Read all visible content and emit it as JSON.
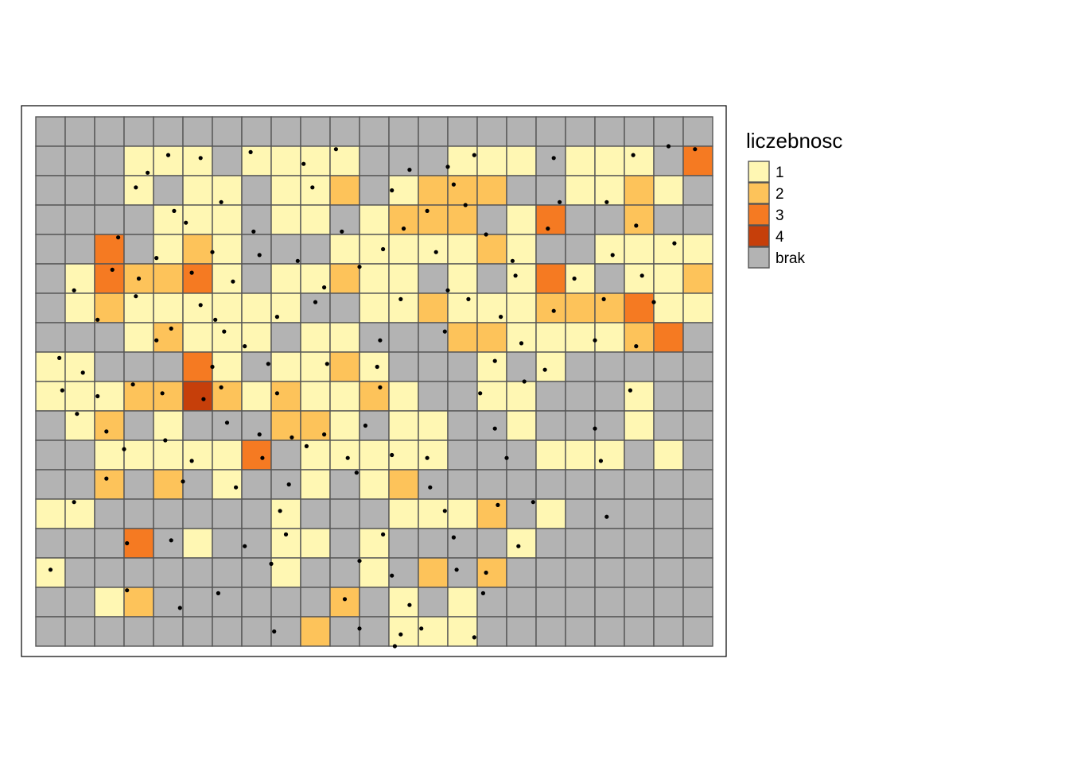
{
  "chart_data": {
    "type": "heatmap",
    "title": "",
    "ncols": 23,
    "nrows": 18,
    "legend": {
      "title": "liczebnosc",
      "placement": "right",
      "entries": [
        {
          "key": "1",
          "label": "1",
          "color": "#FFF7B3"
        },
        {
          "key": "2",
          "label": "2",
          "color": "#FDC35A"
        },
        {
          "key": "3",
          "label": "3",
          "color": "#F57A22"
        },
        {
          "key": "4",
          "label": "4",
          "color": "#C63F0A"
        },
        {
          "key": "0",
          "label": "brak",
          "color": "#B3B3B3"
        }
      ]
    },
    "grid": [
      "00000000000000000000000",
      "00011101111000111011103",
      "00010110112012220011210",
      "00001110110122201300200",
      "00301210001111121001111",
      "01322310112110101310112",
      "01211111100112111222311",
      "00012111011000221111230",
      "11000310112100010100000",
      "11122421211210011000100",
      "01201000221011001000100",
      "00111113011111000111010",
      "00202010010120000000000",
      "11000000100011120100000",
      "00030100110100001000000",
      "10000000100102020000000",
      "00120000002010100000000",
      "00000000020011100000000"
    ],
    "points": [
      [
        4.5,
        1.3
      ],
      [
        5.6,
        1.4
      ],
      [
        3.8,
        1.9
      ],
      [
        7.3,
        1.2
      ],
      [
        9.1,
        1.6
      ],
      [
        10.2,
        1.1
      ],
      [
        12.7,
        1.8
      ],
      [
        14.0,
        1.7
      ],
      [
        14.9,
        1.3
      ],
      [
        17.6,
        1.4
      ],
      [
        20.3,
        1.3
      ],
      [
        21.5,
        1.0
      ],
      [
        22.4,
        1.1
      ],
      [
        3.4,
        2.4
      ],
      [
        6.3,
        2.9
      ],
      [
        9.4,
        2.4
      ],
      [
        12.1,
        2.5
      ],
      [
        14.2,
        2.3
      ],
      [
        17.8,
        2.9
      ],
      [
        19.4,
        2.9
      ],
      [
        4.7,
        3.2
      ],
      [
        5.1,
        3.6
      ],
      [
        7.4,
        3.9
      ],
      [
        10.4,
        3.9
      ],
      [
        12.5,
        3.8
      ],
      [
        13.3,
        3.2
      ],
      [
        14.6,
        3.0
      ],
      [
        17.4,
        3.8
      ],
      [
        20.4,
        3.7
      ],
      [
        2.8,
        4.1
      ],
      [
        4.1,
        4.8
      ],
      [
        6.0,
        4.6
      ],
      [
        7.6,
        4.7
      ],
      [
        8.9,
        4.9
      ],
      [
        11.8,
        4.5
      ],
      [
        13.6,
        4.6
      ],
      [
        15.3,
        4.0
      ],
      [
        16.2,
        4.9
      ],
      [
        19.6,
        4.7
      ],
      [
        21.7,
        4.3
      ],
      [
        1.3,
        5.9
      ],
      [
        2.6,
        5.2
      ],
      [
        3.5,
        5.5
      ],
      [
        5.3,
        5.3
      ],
      [
        6.7,
        5.6
      ],
      [
        9.8,
        5.8
      ],
      [
        11.0,
        5.1
      ],
      [
        14.0,
        5.9
      ],
      [
        16.3,
        5.4
      ],
      [
        18.3,
        5.5
      ],
      [
        20.6,
        5.4
      ],
      [
        2.1,
        6.9
      ],
      [
        3.4,
        6.1
      ],
      [
        5.6,
        6.4
      ],
      [
        6.1,
        6.9
      ],
      [
        8.2,
        6.8
      ],
      [
        9.5,
        6.3
      ],
      [
        12.4,
        6.2
      ],
      [
        14.7,
        6.2
      ],
      [
        15.8,
        6.8
      ],
      [
        17.6,
        6.6
      ],
      [
        19.3,
        6.2
      ],
      [
        21.0,
        6.3
      ],
      [
        4.6,
        7.2
      ],
      [
        4.1,
        7.6
      ],
      [
        6.4,
        7.3
      ],
      [
        7.1,
        7.8
      ],
      [
        11.7,
        7.6
      ],
      [
        13.9,
        7.3
      ],
      [
        16.5,
        7.7
      ],
      [
        19.0,
        7.6
      ],
      [
        20.4,
        7.8
      ],
      [
        0.8,
        8.2
      ],
      [
        1.6,
        8.7
      ],
      [
        6.0,
        8.5
      ],
      [
        7.9,
        8.4
      ],
      [
        9.9,
        8.4
      ],
      [
        11.6,
        8.5
      ],
      [
        15.6,
        8.3
      ],
      [
        17.3,
        8.6
      ],
      [
        0.9,
        9.3
      ],
      [
        2.1,
        9.5
      ],
      [
        3.3,
        9.1
      ],
      [
        4.3,
        9.4
      ],
      [
        5.7,
        9.6
      ],
      [
        6.3,
        9.2
      ],
      [
        8.2,
        9.4
      ],
      [
        11.7,
        9.2
      ],
      [
        15.1,
        9.4
      ],
      [
        16.6,
        9.0
      ],
      [
        20.2,
        9.3
      ],
      [
        1.4,
        10.1
      ],
      [
        2.4,
        10.7
      ],
      [
        6.5,
        10.4
      ],
      [
        7.6,
        10.8
      ],
      [
        8.7,
        10.9
      ],
      [
        9.8,
        10.8
      ],
      [
        11.2,
        10.5
      ],
      [
        15.6,
        10.6
      ],
      [
        19.0,
        10.6
      ],
      [
        3.0,
        11.3
      ],
      [
        4.4,
        11.0
      ],
      [
        5.3,
        11.7
      ],
      [
        7.7,
        11.6
      ],
      [
        9.2,
        11.2
      ],
      [
        10.6,
        11.6
      ],
      [
        12.1,
        11.5
      ],
      [
        13.3,
        11.6
      ],
      [
        16.0,
        11.6
      ],
      [
        19.2,
        11.7
      ],
      [
        2.4,
        12.3
      ],
      [
        5.0,
        12.4
      ],
      [
        6.8,
        12.6
      ],
      [
        8.6,
        12.5
      ],
      [
        10.9,
        12.1
      ],
      [
        13.4,
        12.6
      ],
      [
        1.3,
        13.1
      ],
      [
        8.3,
        13.4
      ],
      [
        13.9,
        13.4
      ],
      [
        15.7,
        13.2
      ],
      [
        16.9,
        13.1
      ],
      [
        19.4,
        13.6
      ],
      [
        3.1,
        14.5
      ],
      [
        4.6,
        14.4
      ],
      [
        7.1,
        14.6
      ],
      [
        8.5,
        14.2
      ],
      [
        11.8,
        14.2
      ],
      [
        14.2,
        14.3
      ],
      [
        16.4,
        14.6
      ],
      [
        0.5,
        15.4
      ],
      [
        8.0,
        15.2
      ],
      [
        11.0,
        15.1
      ],
      [
        12.1,
        15.6
      ],
      [
        14.3,
        15.4
      ],
      [
        15.3,
        15.5
      ],
      [
        3.1,
        16.1
      ],
      [
        4.9,
        16.7
      ],
      [
        6.2,
        16.2
      ],
      [
        10.5,
        16.4
      ],
      [
        12.7,
        16.6
      ],
      [
        15.2,
        16.2
      ],
      [
        8.1,
        17.5
      ],
      [
        11.0,
        17.4
      ],
      [
        12.4,
        17.6
      ],
      [
        13.1,
        17.4
      ],
      [
        14.9,
        17.7
      ],
      [
        12.2,
        18.0
      ]
    ]
  }
}
